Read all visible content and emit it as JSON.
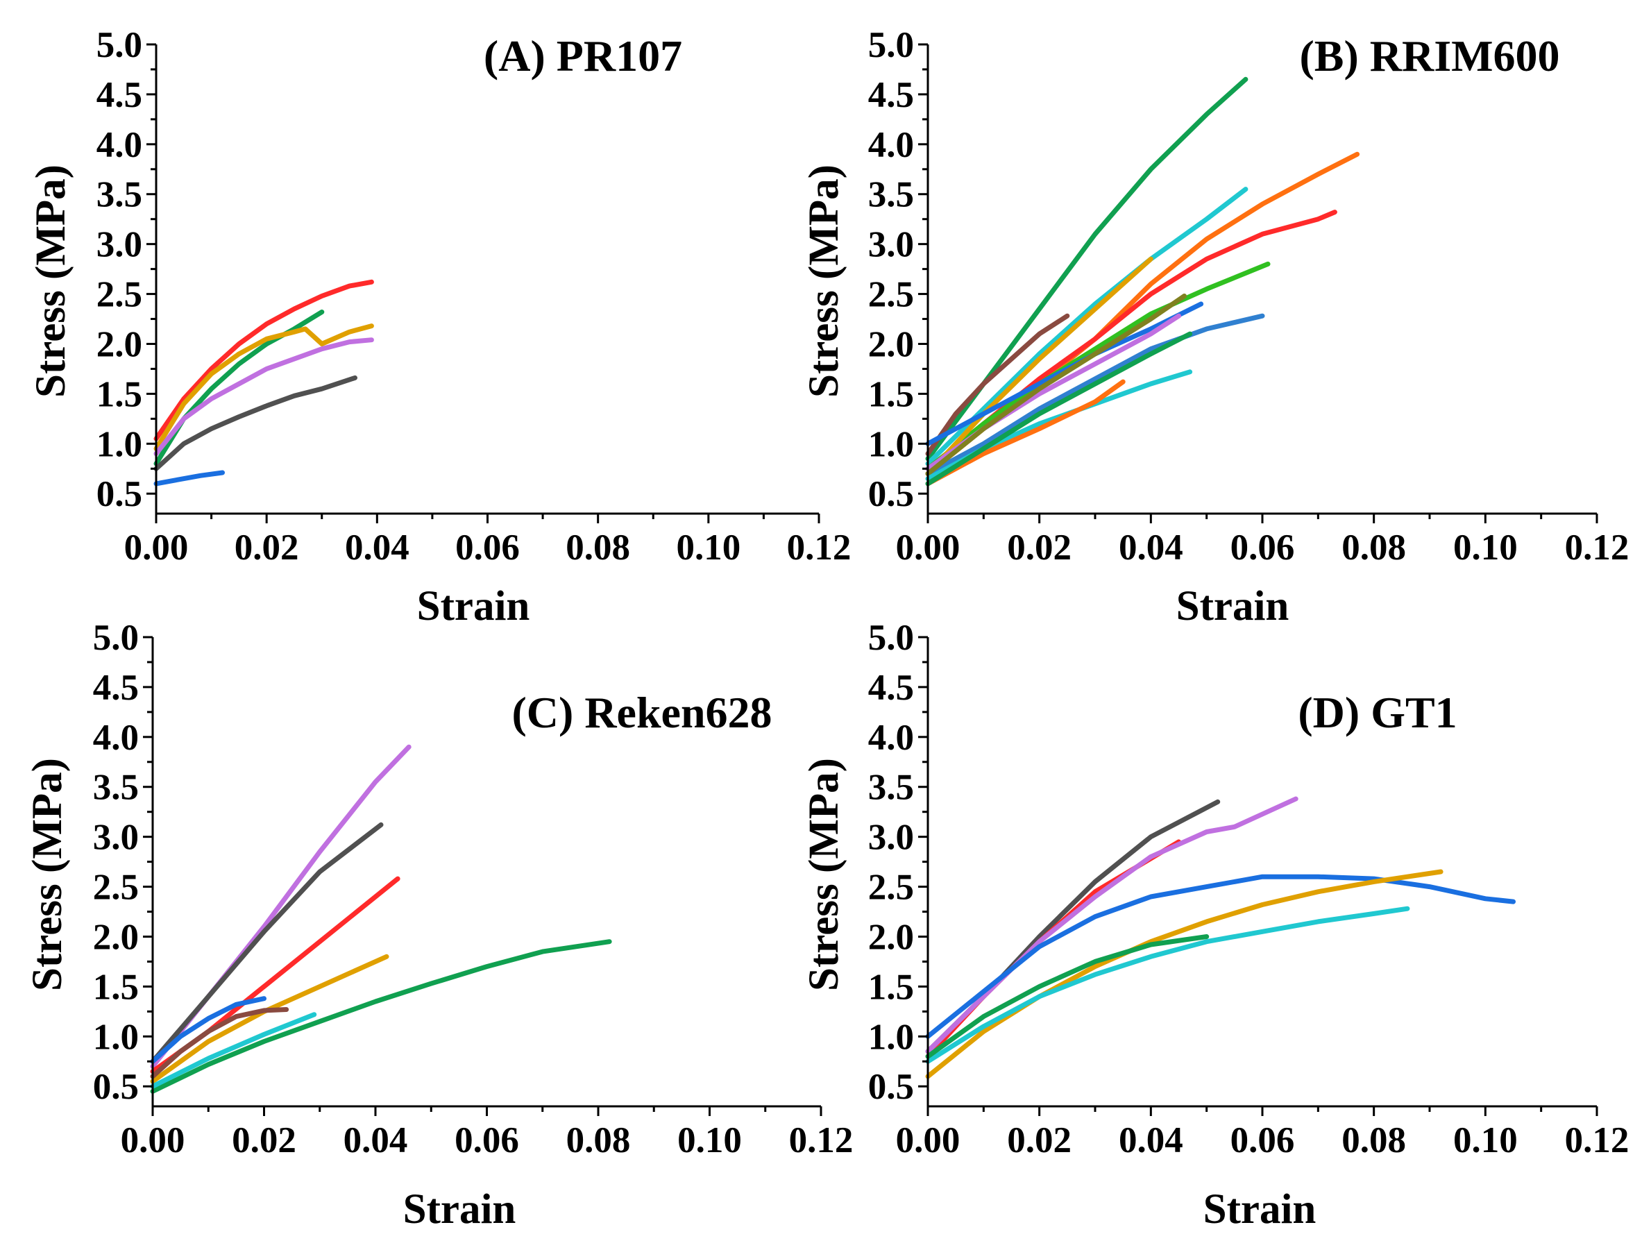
{
  "chart_data": [
    {
      "type": "line",
      "panel": "A",
      "title": "(A) PR107",
      "xlabel": "Strain",
      "ylabel": "Stress (MPa)",
      "xlim": [
        0,
        0.12
      ],
      "ylim": [
        0.3,
        5.0
      ],
      "xticks": [
        "0.00",
        "0.02",
        "0.04",
        "0.06",
        "0.08",
        "0.10",
        "0.12"
      ],
      "yticks": [
        "0.5",
        "1.0",
        "1.5",
        "2.0",
        "2.5",
        "3.0",
        "3.5",
        "4.0",
        "4.5",
        "5.0"
      ],
      "series": [
        {
          "color": "#ff2a2a",
          "x": [
            0,
            0.005,
            0.01,
            0.015,
            0.02,
            0.025,
            0.03,
            0.035,
            0.039
          ],
          "y": [
            1.05,
            1.45,
            1.75,
            2.0,
            2.2,
            2.35,
            2.48,
            2.58,
            2.62
          ]
        },
        {
          "color": "#10a050",
          "x": [
            0,
            0.005,
            0.01,
            0.015,
            0.02,
            0.025,
            0.03
          ],
          "y": [
            0.8,
            1.25,
            1.55,
            1.8,
            2.0,
            2.15,
            2.32
          ]
        },
        {
          "color": "#e0a000",
          "x": [
            0,
            0.005,
            0.01,
            0.015,
            0.02,
            0.025,
            0.027,
            0.03,
            0.035,
            0.039
          ],
          "y": [
            0.95,
            1.4,
            1.7,
            1.9,
            2.05,
            2.12,
            2.15,
            2.0,
            2.12,
            2.18
          ]
        },
        {
          "color": "#c070e0",
          "x": [
            0,
            0.005,
            0.01,
            0.015,
            0.02,
            0.025,
            0.03,
            0.035,
            0.039
          ],
          "y": [
            0.9,
            1.25,
            1.45,
            1.6,
            1.75,
            1.85,
            1.95,
            2.02,
            2.04
          ]
        },
        {
          "color": "#505050",
          "x": [
            0,
            0.005,
            0.01,
            0.015,
            0.02,
            0.025,
            0.03,
            0.036
          ],
          "y": [
            0.75,
            1.0,
            1.15,
            1.27,
            1.38,
            1.48,
            1.55,
            1.66
          ]
        },
        {
          "color": "#1a6fe0",
          "x": [
            0,
            0.004,
            0.008,
            0.012
          ],
          "y": [
            0.6,
            0.64,
            0.68,
            0.71
          ]
        }
      ]
    },
    {
      "type": "line",
      "panel": "B",
      "title": "(B) RRIM600",
      "xlabel": "Strain",
      "ylabel": "Stress (MPa)",
      "xlim": [
        0,
        0.12
      ],
      "ylim": [
        0.3,
        5.0
      ],
      "xticks": [
        "0.00",
        "0.02",
        "0.04",
        "0.06",
        "0.08",
        "0.10",
        "0.12"
      ],
      "yticks": [
        "0.5",
        "1.0",
        "1.5",
        "2.0",
        "2.5",
        "3.0",
        "3.5",
        "4.0",
        "4.5",
        "5.0"
      ],
      "series": [
        {
          "color": "#10a050",
          "x": [
            0,
            0.01,
            0.02,
            0.03,
            0.04,
            0.05,
            0.057
          ],
          "y": [
            0.85,
            1.6,
            2.35,
            3.1,
            3.75,
            4.3,
            4.65
          ]
        },
        {
          "color": "#20c8d0",
          "x": [
            0,
            0.01,
            0.02,
            0.03,
            0.04,
            0.05,
            0.057
          ],
          "y": [
            0.8,
            1.35,
            1.9,
            2.4,
            2.85,
            3.25,
            3.55
          ]
        },
        {
          "color": "#ff7010",
          "x": [
            0,
            0.01,
            0.02,
            0.03,
            0.04,
            0.05,
            0.06,
            0.07,
            0.077
          ],
          "y": [
            0.7,
            1.15,
            1.6,
            2.05,
            2.6,
            3.05,
            3.4,
            3.7,
            3.9
          ]
        },
        {
          "color": "#ff2a2a",
          "x": [
            0,
            0.01,
            0.02,
            0.03,
            0.04,
            0.05,
            0.06,
            0.07,
            0.073
          ],
          "y": [
            0.75,
            1.2,
            1.65,
            2.05,
            2.5,
            2.85,
            3.1,
            3.25,
            3.32
          ]
        },
        {
          "color": "#30c020",
          "x": [
            0,
            0.01,
            0.02,
            0.03,
            0.04,
            0.05,
            0.061
          ],
          "y": [
            0.75,
            1.2,
            1.6,
            1.95,
            2.3,
            2.55,
            2.8
          ]
        },
        {
          "color": "#3080d0",
          "x": [
            0,
            0.01,
            0.02,
            0.03,
            0.04,
            0.05,
            0.06
          ],
          "y": [
            0.7,
            1.0,
            1.35,
            1.65,
            1.95,
            2.15,
            2.28
          ]
        },
        {
          "color": "#8a4a40",
          "x": [
            0,
            0.005,
            0.01,
            0.015,
            0.02,
            0.025
          ],
          "y": [
            0.9,
            1.3,
            1.6,
            1.85,
            2.1,
            2.28
          ]
        },
        {
          "color": "#e0a000",
          "x": [
            0,
            0.01,
            0.02,
            0.03,
            0.04
          ],
          "y": [
            0.7,
            1.3,
            1.85,
            2.35,
            2.85
          ]
        },
        {
          "color": "#1a6fe0",
          "x": [
            0,
            0.01,
            0.02,
            0.03,
            0.04,
            0.049
          ],
          "y": [
            1.0,
            1.3,
            1.6,
            1.9,
            2.15,
            2.4
          ]
        },
        {
          "color": "#c070e0",
          "x": [
            0,
            0.01,
            0.02,
            0.03,
            0.04,
            0.045
          ],
          "y": [
            0.75,
            1.15,
            1.5,
            1.8,
            2.1,
            2.28
          ]
        },
        {
          "color": "#808020",
          "x": [
            0,
            0.01,
            0.02,
            0.03,
            0.04,
            0.046
          ],
          "y": [
            0.7,
            1.15,
            1.55,
            1.9,
            2.25,
            2.48
          ]
        },
        {
          "color": "#20c8d0",
          "x": [
            0,
            0.01,
            0.02,
            0.03,
            0.04,
            0.047
          ],
          "y": [
            0.65,
            0.95,
            1.2,
            1.4,
            1.6,
            1.72
          ]
        },
        {
          "color": "#ff7010",
          "x": [
            0,
            0.01,
            0.02,
            0.03,
            0.035
          ],
          "y": [
            0.6,
            0.9,
            1.15,
            1.42,
            1.62
          ]
        },
        {
          "color": "#10a050",
          "x": [
            0,
            0.01,
            0.02,
            0.03,
            0.04,
            0.047
          ],
          "y": [
            0.6,
            0.95,
            1.3,
            1.6,
            1.9,
            2.1
          ]
        }
      ]
    },
    {
      "type": "line",
      "panel": "C",
      "title": "(C) Reken628",
      "xlabel": "Strain",
      "ylabel": "Stress (MPa)",
      "xlim": [
        0,
        0.12
      ],
      "ylim": [
        0.3,
        5.0
      ],
      "xticks": [
        "0.00",
        "0.02",
        "0.04",
        "0.06",
        "0.08",
        "0.10",
        "0.12"
      ],
      "yticks": [
        "0.5",
        "1.0",
        "1.5",
        "2.0",
        "2.5",
        "3.0",
        "3.5",
        "4.0",
        "4.5",
        "5.0"
      ],
      "series": [
        {
          "color": "#c070e0",
          "x": [
            0,
            0.01,
            0.02,
            0.03,
            0.04,
            0.046
          ],
          "y": [
            0.7,
            1.4,
            2.1,
            2.85,
            3.55,
            3.9
          ]
        },
        {
          "color": "#505050",
          "x": [
            0,
            0.01,
            0.02,
            0.03,
            0.041
          ],
          "y": [
            0.75,
            1.4,
            2.05,
            2.65,
            3.12
          ]
        },
        {
          "color": "#ff2a2a",
          "x": [
            0,
            0.01,
            0.02,
            0.03,
            0.044
          ],
          "y": [
            0.65,
            1.05,
            1.5,
            1.95,
            2.58
          ]
        },
        {
          "color": "#e0a000",
          "x": [
            0,
            0.01,
            0.02,
            0.03,
            0.042
          ],
          "y": [
            0.55,
            0.95,
            1.25,
            1.5,
            1.8
          ]
        },
        {
          "color": "#10a050",
          "x": [
            0,
            0.01,
            0.02,
            0.03,
            0.04,
            0.05,
            0.06,
            0.07,
            0.082
          ],
          "y": [
            0.45,
            0.72,
            0.95,
            1.15,
            1.35,
            1.53,
            1.7,
            1.85,
            1.95
          ]
        },
        {
          "color": "#1a6fe0",
          "x": [
            0,
            0.005,
            0.01,
            0.015,
            0.02
          ],
          "y": [
            0.75,
            1.0,
            1.18,
            1.32,
            1.38
          ]
        },
        {
          "color": "#8a4a40",
          "x": [
            0,
            0.005,
            0.01,
            0.015,
            0.02,
            0.024
          ],
          "y": [
            0.6,
            0.85,
            1.05,
            1.2,
            1.26,
            1.27
          ]
        },
        {
          "color": "#20c8d0",
          "x": [
            0,
            0.01,
            0.02,
            0.029
          ],
          "y": [
            0.5,
            0.78,
            1.02,
            1.22
          ]
        }
      ]
    },
    {
      "type": "line",
      "panel": "D",
      "title": "(D) GT1",
      "xlabel": "Strain",
      "ylabel": "Stress (MPa)",
      "xlim": [
        0,
        0.12
      ],
      "ylim": [
        0.3,
        5.0
      ],
      "xticks": [
        "0.00",
        "0.02",
        "0.04",
        "0.06",
        "0.08",
        "0.10",
        "0.12"
      ],
      "yticks": [
        "0.5",
        "1.0",
        "1.5",
        "2.0",
        "2.5",
        "3.0",
        "3.5",
        "4.0",
        "4.5",
        "5.0"
      ],
      "series": [
        {
          "color": "#505050",
          "x": [
            0,
            0.01,
            0.02,
            0.03,
            0.04,
            0.052
          ],
          "y": [
            0.85,
            1.4,
            2.0,
            2.55,
            3.0,
            3.35
          ]
        },
        {
          "color": "#ff2a2a",
          "x": [
            0,
            0.01,
            0.02,
            0.03,
            0.045
          ],
          "y": [
            0.8,
            1.4,
            1.95,
            2.45,
            2.95
          ]
        },
        {
          "color": "#c070e0",
          "x": [
            0,
            0.01,
            0.02,
            0.03,
            0.04,
            0.05,
            0.055,
            0.066
          ],
          "y": [
            0.85,
            1.4,
            1.95,
            2.4,
            2.8,
            3.05,
            3.1,
            3.38
          ]
        },
        {
          "color": "#1a6fe0",
          "x": [
            0,
            0.01,
            0.02,
            0.03,
            0.04,
            0.05,
            0.06,
            0.07,
            0.08,
            0.09,
            0.1,
            0.105
          ],
          "y": [
            1.0,
            1.45,
            1.9,
            2.2,
            2.4,
            2.5,
            2.6,
            2.6,
            2.58,
            2.5,
            2.38,
            2.35
          ]
        },
        {
          "color": "#e0a000",
          "x": [
            0,
            0.01,
            0.02,
            0.03,
            0.04,
            0.05,
            0.06,
            0.07,
            0.08,
            0.092
          ],
          "y": [
            0.6,
            1.05,
            1.4,
            1.7,
            1.95,
            2.15,
            2.32,
            2.45,
            2.55,
            2.65
          ]
        },
        {
          "color": "#20c8d0",
          "x": [
            0,
            0.01,
            0.02,
            0.03,
            0.04,
            0.05,
            0.06,
            0.07,
            0.08,
            0.086
          ],
          "y": [
            0.75,
            1.1,
            1.4,
            1.62,
            1.8,
            1.95,
            2.05,
            2.15,
            2.23,
            2.28
          ]
        },
        {
          "color": "#10a050",
          "x": [
            0,
            0.01,
            0.02,
            0.03,
            0.04,
            0.05
          ],
          "y": [
            0.8,
            1.2,
            1.5,
            1.75,
            1.92,
            2.0
          ]
        }
      ]
    }
  ]
}
